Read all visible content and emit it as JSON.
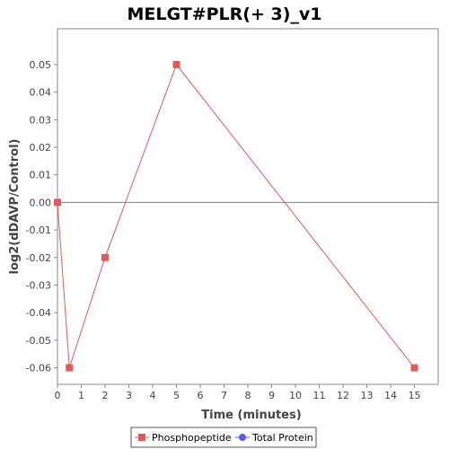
{
  "chart_data": {
    "type": "line",
    "title": "MELGT#PLR(+ 3)_v1",
    "xlabel": "Time (minutes)",
    "ylabel": "log2(dDAVP/Control)",
    "xlim": [
      0,
      16
    ],
    "ylim": [
      -0.066,
      0.063
    ],
    "x_ticks": [
      0,
      1,
      2,
      3,
      4,
      5,
      6,
      7,
      8,
      9,
      10,
      11,
      12,
      13,
      14,
      15
    ],
    "x_tick_labels": [
      "0",
      "1",
      "2",
      "3",
      "4",
      "5",
      "6",
      "7",
      "8",
      "9",
      "10",
      "11",
      "12",
      "13",
      "14",
      "15"
    ],
    "y_ticks": [
      0.05,
      0.04,
      0.03,
      0.02,
      0.01,
      0.0,
      -0.01,
      -0.02,
      -0.03,
      -0.04,
      -0.05,
      -0.06
    ],
    "y_tick_labels": [
      "0.05",
      "0.04",
      "0.03",
      "0.02",
      "0.01",
      "0.00",
      "-0.01",
      "-0.02",
      "-0.03",
      "-0.04",
      "-0.05",
      "-0.06"
    ],
    "reference_line_y": 0,
    "grid": false,
    "legend_position": "bottom",
    "series": [
      {
        "name": "Phosphopeptide",
        "color": "#e05a5a",
        "marker": "square",
        "x": [
          0,
          0.5,
          2,
          5,
          15
        ],
        "y": [
          0.0,
          -0.06,
          -0.02,
          0.05,
          -0.06
        ]
      },
      {
        "name": "Total Protein",
        "color": "#5a5af0",
        "marker": "circle",
        "x": [],
        "y": []
      }
    ]
  }
}
